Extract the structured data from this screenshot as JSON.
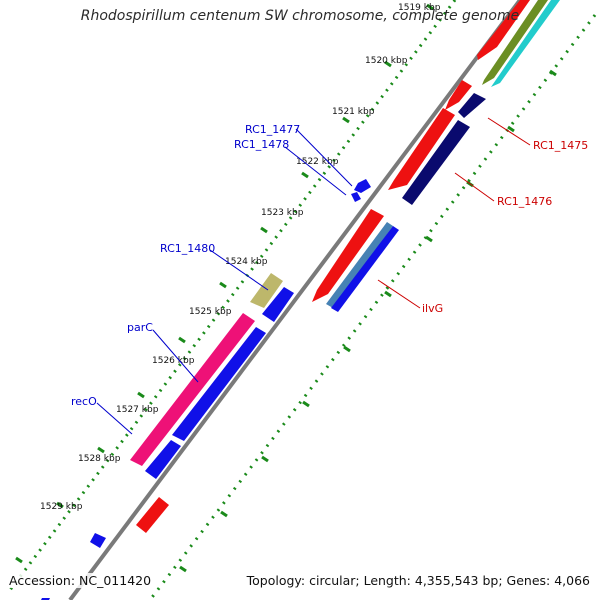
{
  "title": "Rhodospirillum centenum SW chromosome, complete genome",
  "accession": "Accession: NC_011420",
  "summary": "Topology: circular; Length: 4,355,543 bp; Genes: 4,066",
  "ticks": [
    "1519 kbp",
    "1520 kbp",
    "1521 kbp",
    "1522 kbp",
    "1523 kbp",
    "1524 kbp",
    "1525 kbp",
    "1526 kbp",
    "1527 kbp",
    "1528 kbp",
    "1529 kbp"
  ],
  "gene_labels": [
    {
      "text": "RC1_1475",
      "color": "#cc0000"
    },
    {
      "text": "RC1_1476",
      "color": "#cc0000"
    },
    {
      "text": "ilvG",
      "color": "#cc0000"
    },
    {
      "text": "RC1_1477",
      "color": "#0000cc"
    },
    {
      "text": "RC1_1478",
      "color": "#0000cc"
    },
    {
      "text": "RC1_1480",
      "color": "#0000cc"
    },
    {
      "text": "parC",
      "color": "#0000cc"
    },
    {
      "text": "recO",
      "color": "#0000cc"
    }
  ],
  "colors": {
    "backbone": "#7a7a7a",
    "tick": "#1a8a1a",
    "red": "#ee1111",
    "navy": "#0a0a6e",
    "blue": "#1010e8",
    "olive": "#6b8e23",
    "cyan": "#22cccc",
    "steel": "#4682b4",
    "magenta": "#ee1177",
    "khaki": "#bdb76b"
  }
}
